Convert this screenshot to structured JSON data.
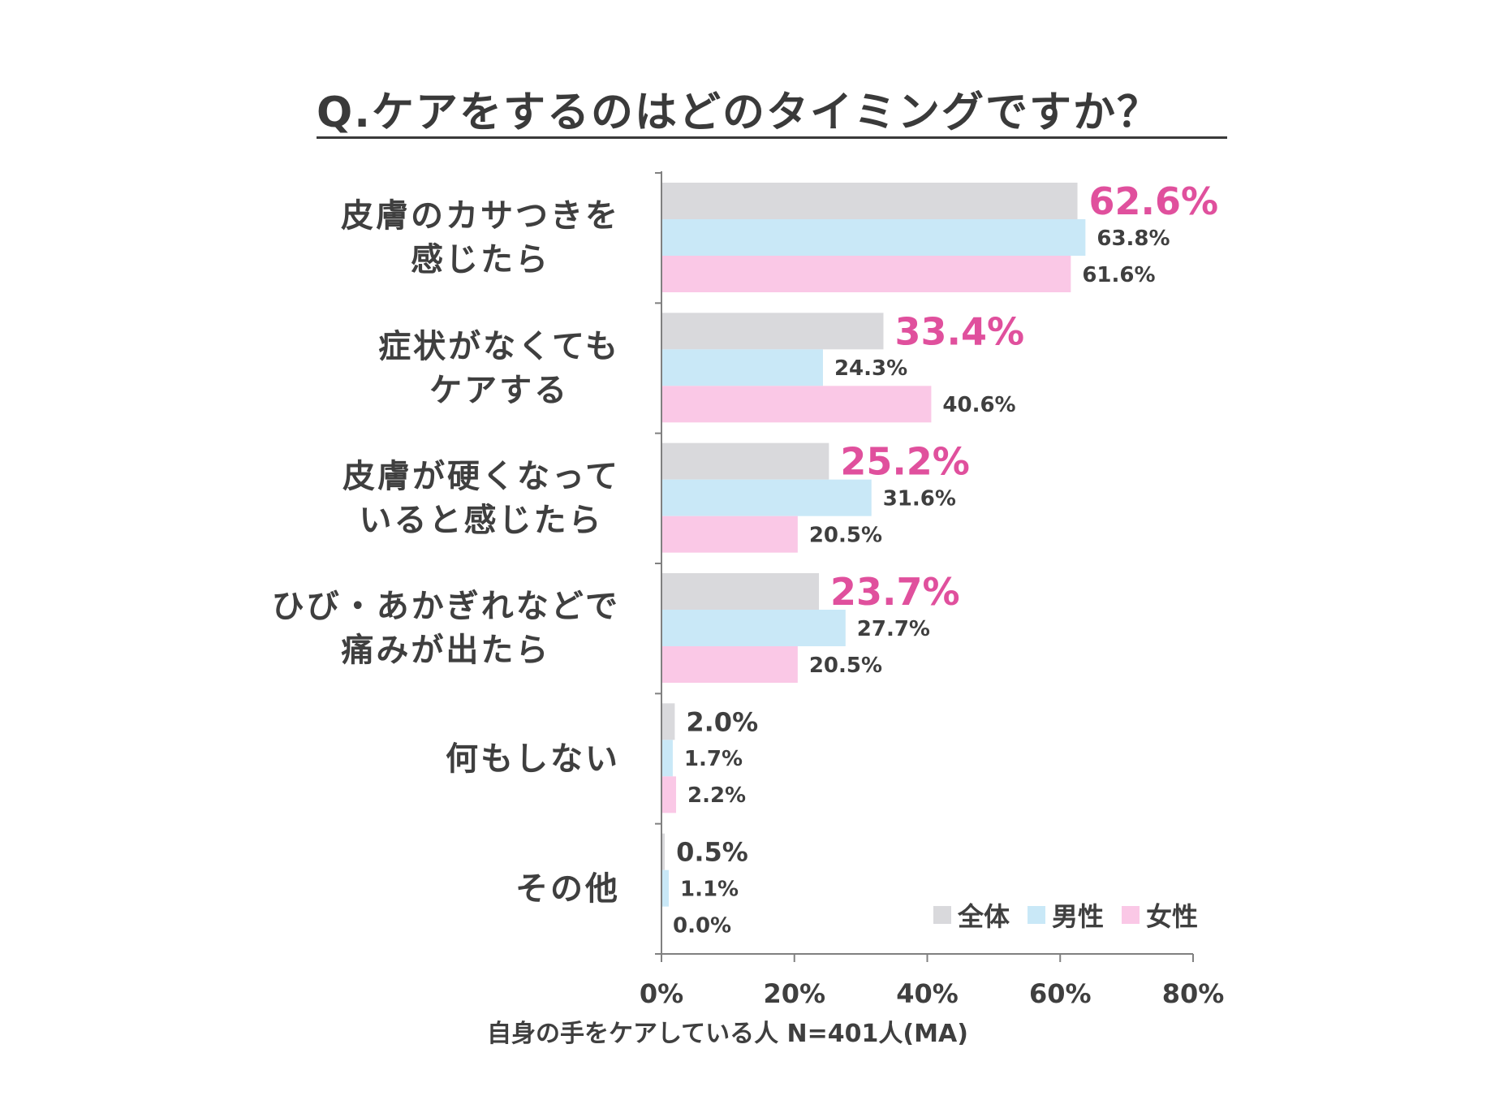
{
  "chart_data": {
    "type": "bar",
    "orientation": "horizontal",
    "title": "Q.ケアをするのはどのタイミングですか？",
    "xlabel": "自身の手をケアしている人 N=401人(MA)",
    "xlim": [
      0,
      80
    ],
    "x_ticks": [
      "0%",
      "20%",
      "40%",
      "60%",
      "80%"
    ],
    "categories": [
      [
        "皮膚のカサつきを",
        "感じたら"
      ],
      [
        "症状がなくても",
        "ケアする"
      ],
      [
        "皮膚が硬くなって",
        "いると感じたら"
      ],
      [
        "ひび・あかぎれなどで",
        "痛みが出たら"
      ],
      [
        "何もしない"
      ],
      [
        "その他"
      ]
    ],
    "series": [
      {
        "name": "全体",
        "color": "#d9d9dc",
        "values": [
          62.6,
          33.4,
          25.2,
          23.7,
          2.0,
          0.5
        ],
        "labels": [
          "62.6%",
          "33.4%",
          "25.2%",
          "23.7%",
          "2.0%",
          "0.5%"
        ]
      },
      {
        "name": "男性",
        "color": "#c9e8f7",
        "values": [
          63.8,
          24.3,
          31.6,
          27.7,
          1.7,
          1.1
        ],
        "labels": [
          "63.8%",
          "24.3%",
          "31.6%",
          "27.7%",
          "1.7%",
          "1.1%"
        ]
      },
      {
        "name": "女性",
        "color": "#fac8e6",
        "values": [
          61.6,
          40.6,
          20.5,
          20.5,
          2.2,
          0.0
        ],
        "labels": [
          "61.6%",
          "40.6%",
          "20.5%",
          "20.5%",
          "2.2%",
          "0.0%"
        ]
      }
    ],
    "highlight_color": "#e0509d",
    "legend": {
      "position": "bottom-right"
    }
  }
}
